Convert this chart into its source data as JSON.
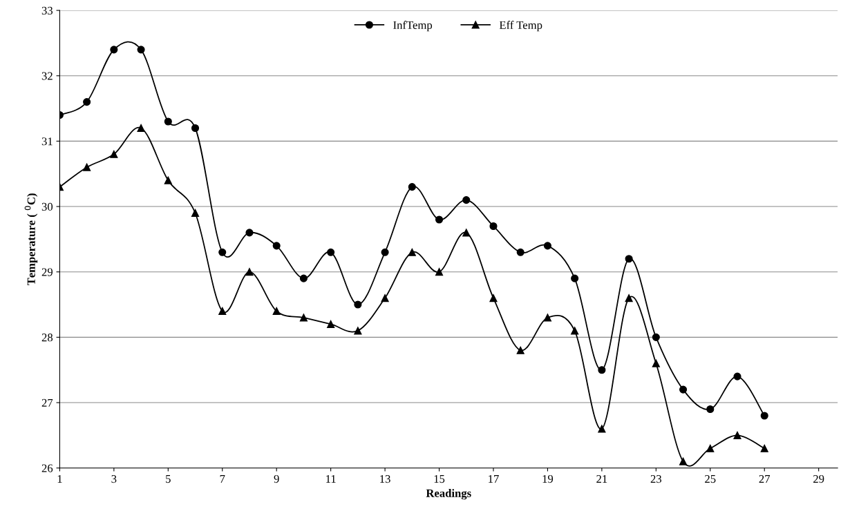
{
  "chart_data": {
    "type": "line",
    "xlabel": "Readings",
    "ylabel": "Temperature ( $^{0}$C)",
    "x": [
      1,
      2,
      3,
      4,
      5,
      6,
      7,
      8,
      9,
      10,
      11,
      12,
      13,
      14,
      15,
      16,
      17,
      18,
      19,
      20,
      21,
      22,
      23,
      24,
      25,
      26,
      27
    ],
    "series": [
      {
        "name": "InfTemp",
        "color": "#000000",
        "marker": "circle",
        "values": [
          31.4,
          31.6,
          32.4,
          32.4,
          31.3,
          31.2,
          29.3,
          29.6,
          29.4,
          28.9,
          29.3,
          28.5,
          29.3,
          30.3,
          29.8,
          30.1,
          29.7,
          29.3,
          29.4,
          28.9,
          27.5,
          29.2,
          28.0,
          27.2,
          26.9,
          27.4,
          26.8
        ]
      },
      {
        "name": "Eff Temp",
        "color": "#000000",
        "marker": "triangle",
        "values": [
          30.3,
          30.6,
          30.8,
          31.2,
          30.4,
          29.9,
          28.4,
          29.0,
          28.4,
          28.3,
          28.2,
          28.1,
          28.6,
          29.3,
          29.0,
          29.6,
          28.6,
          27.8,
          28.3,
          28.1,
          26.6,
          28.6,
          27.6,
          26.1,
          26.3,
          26.5,
          26.3
        ]
      }
    ],
    "xlim": [
      1,
      29.7
    ],
    "xticks": [
      1,
      3,
      5,
      7,
      9,
      11,
      13,
      15,
      17,
      19,
      21,
      23,
      25,
      27,
      29
    ],
    "ylim": [
      26,
      33
    ],
    "yticks": [
      26,
      27,
      28,
      29,
      30,
      31,
      32,
      33
    ],
    "grid": "y",
    "legend": "top",
    "line_style": "solid"
  }
}
